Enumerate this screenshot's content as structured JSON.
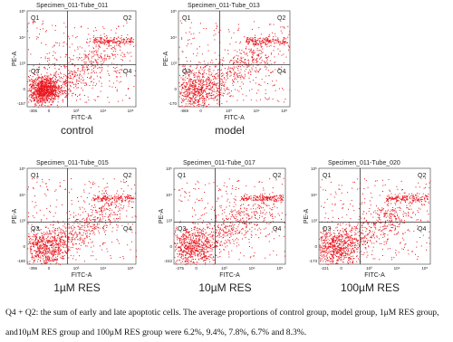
{
  "panels": [
    {
      "title": "Specimen_011-Tube_011",
      "caption": "control",
      "y_min_label": "-157",
      "x_min_label": "-306"
    },
    {
      "title": "Specimen_011-Tube_013",
      "caption": "model",
      "y_min_label": "-170",
      "x_min_label": "-869"
    },
    {
      "title": "Specimen_011-Tube_015",
      "caption": "1µM RES",
      "y_min_label": "-180",
      "x_min_label": "-396"
    },
    {
      "title": "Specimen_011-Tube_017",
      "caption": "10µM RES",
      "y_min_label": "-242",
      "x_min_label": "-275"
    },
    {
      "title": "Specimen_011-Tube_020",
      "caption": "100µM RES",
      "y_min_label": "-173",
      "x_min_label": "-221"
    }
  ],
  "quadrants": [
    "Q1",
    "Q2",
    "Q3",
    "Q4"
  ],
  "y_label": "PE-A",
  "x_label": "FITC-A",
  "x_ticks": [
    "0",
    "10³",
    "10⁴",
    "10⁵"
  ],
  "y_ticks": [
    "0",
    "10³",
    "10⁴",
    "10⁵"
  ],
  "text": {
    "line1": "Q4 + Q2: the sum of early and late apoptotic cells. The average proportions of control group, model group, 1μM RES group,",
    "line2": "and10μM RES group and 100μM RES group were 6.2%, 9.4%, 7.8%, 6.7% and 8.3%."
  }
}
